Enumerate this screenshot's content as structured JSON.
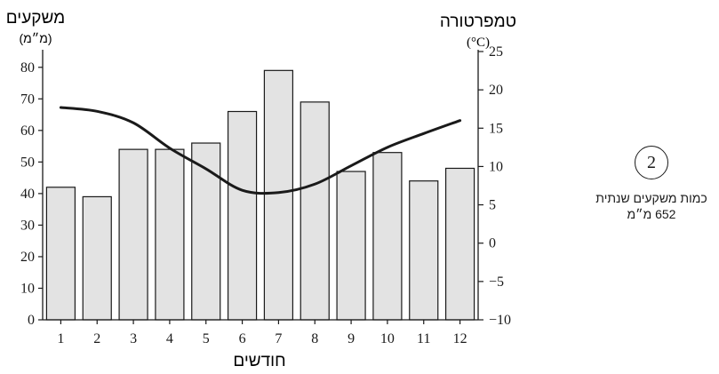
{
  "chart_data": {
    "type": "bar",
    "categories": [
      "1",
      "2",
      "3",
      "4",
      "5",
      "6",
      "7",
      "8",
      "9",
      "10",
      "11",
      "12"
    ],
    "xlabel": "חודשים",
    "series": [
      {
        "name": "משקעים",
        "type": "bar",
        "axis": "left",
        "values": [
          42,
          39,
          54,
          54,
          56,
          66,
          79,
          69,
          47,
          53,
          44,
          48
        ]
      },
      {
        "name": "טמפרטורה",
        "type": "line",
        "axis": "right",
        "values": [
          17.7,
          17.2,
          15.7,
          12.4,
          9.7,
          6.9,
          6.6,
          7.7,
          10.1,
          12.5,
          14.3,
          16.0
        ]
      }
    ],
    "left_axis": {
      "title": "משקעים",
      "unit": "(מ״מ)",
      "ylim": [
        0,
        85
      ],
      "ticks": [
        0,
        10,
        20,
        30,
        40,
        50,
        60,
        70,
        80
      ]
    },
    "right_axis": {
      "title": "טמפרטורה",
      "unit": "(°C)",
      "ylim": [
        -10,
        25
      ],
      "ticks": [
        "−10",
        "−5",
        "0",
        "5",
        "10",
        "15",
        "20",
        "25"
      ]
    },
    "grid": false,
    "colors": {
      "bar_fill": "#e3e3e3",
      "bar_stroke": "#1a1a1a",
      "line": "#1a1a1a"
    }
  },
  "annotation": {
    "badge": "2",
    "line1": "כמות משקעים שנתית",
    "line2": "652 מ״מ"
  }
}
